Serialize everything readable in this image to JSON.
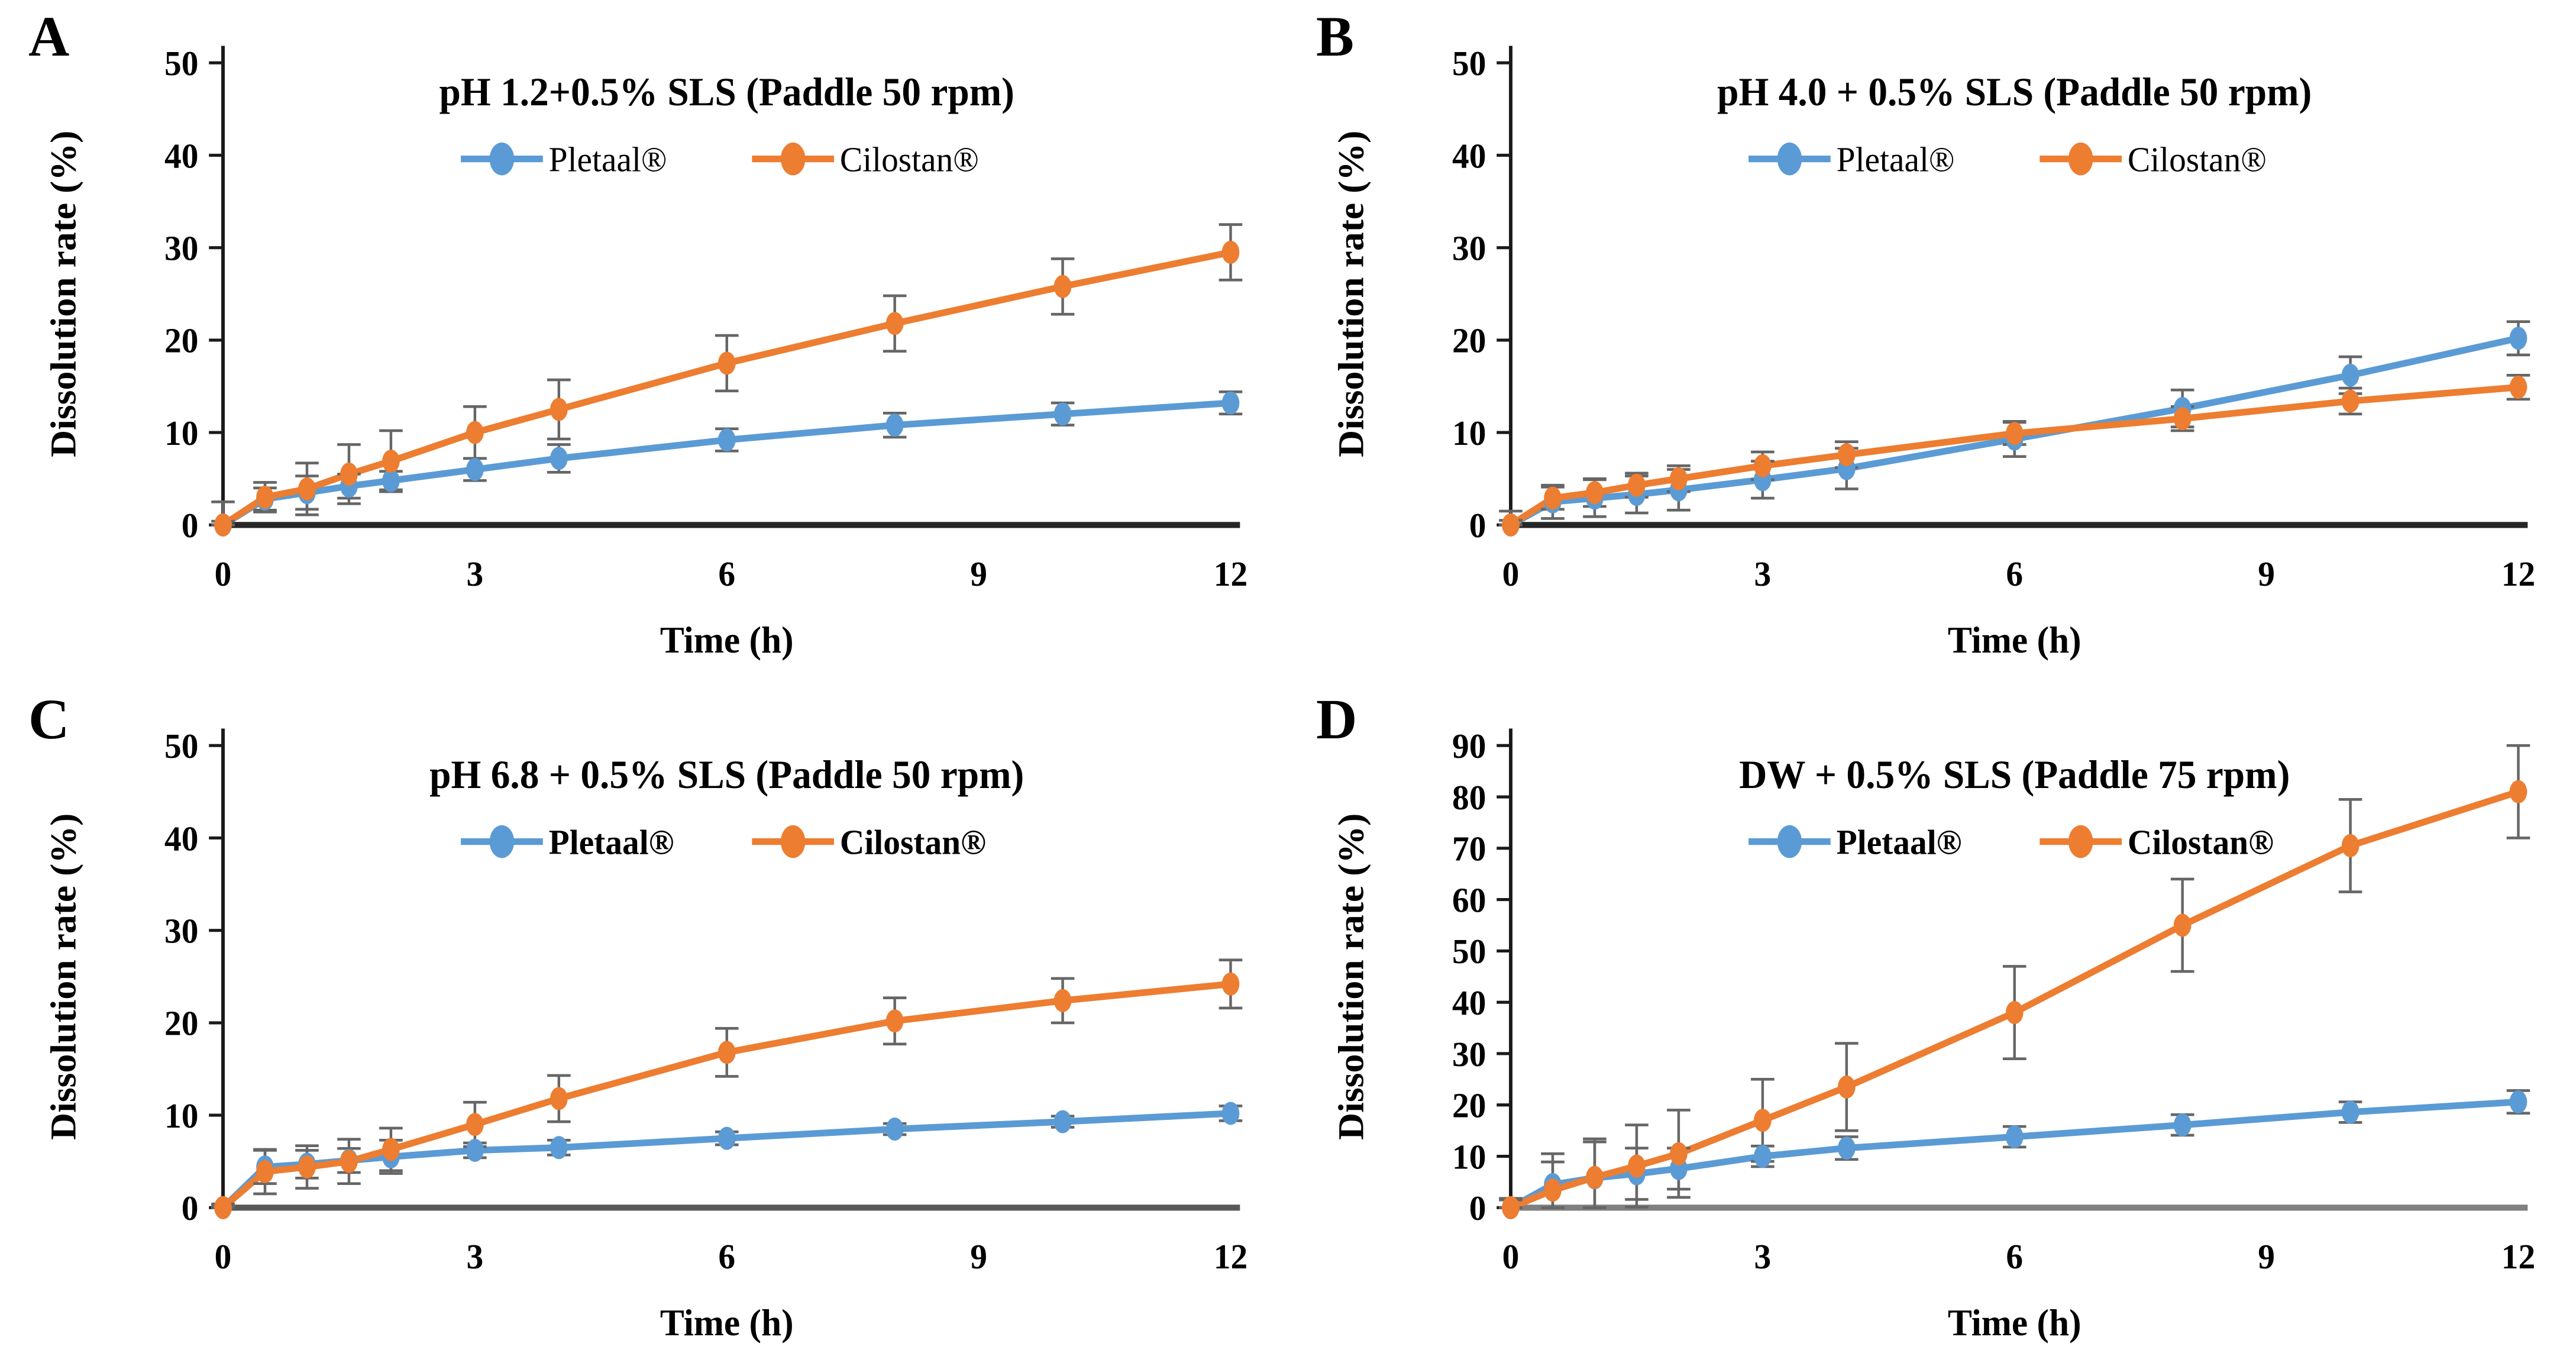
{
  "figure": {
    "description": "Dissolution profiles of cilostazol tablets under four media conditions",
    "series_legend": [
      "Pletaal®",
      "Cilostan®"
    ]
  },
  "colors": {
    "pletaal_blue": "#5B9BD5",
    "cilostan_orange": "#ED7D31",
    "error_bar_gray": "#666666",
    "axis_black": "#1a1a1a",
    "text_black": "#000000",
    "background": "#FFFFFF"
  },
  "chart_data": [
    {
      "type": "line",
      "panel": "A",
      "title": "pH 1.2+0.5% SLS (Paddle 50 rpm)",
      "xlabel": "Time (h)",
      "ylabel": "Dissolution rate (%)",
      "xlim": [
        0,
        12
      ],
      "ylim": [
        0,
        50
      ],
      "xticks": [
        0,
        3,
        6,
        9,
        12
      ],
      "yticks": [
        0,
        10,
        20,
        30,
        40,
        50
      ],
      "grid": false,
      "legend_position": "top-center",
      "legend_bold": false,
      "baseline_color": "#262626",
      "x": [
        0,
        0.5,
        1,
        1.5,
        2,
        3,
        4,
        6,
        8,
        10,
        12
      ],
      "series": [
        {
          "name": "Pletaal®",
          "color": "#5B9BD5",
          "values": [
            0,
            2.8,
            3.5,
            4.2,
            4.8,
            6.0,
            7.2,
            9.2,
            10.8,
            12.0,
            13.2
          ],
          "errors": [
            0.4,
            1.2,
            1.8,
            1.3,
            1.0,
            1.2,
            1.5,
            1.2,
            1.3,
            1.2,
            1.2
          ]
        },
        {
          "name": "Cilostan®",
          "color": "#ED7D31",
          "values": [
            0,
            3.0,
            3.9,
            5.5,
            6.9,
            10.0,
            12.5,
            17.5,
            21.8,
            25.8,
            29.5
          ],
          "errors": [
            2.5,
            1.6,
            2.8,
            3.2,
            3.3,
            2.8,
            3.2,
            3.0,
            3.0,
            3.0,
            3.0
          ]
        }
      ]
    },
    {
      "type": "line",
      "panel": "B",
      "title": "pH 4.0 + 0.5% SLS (Paddle 50 rpm)",
      "xlabel": "Time (h)",
      "ylabel": "Dissolution rate (%)",
      "xlim": [
        0,
        12
      ],
      "ylim": [
        0,
        50
      ],
      "xticks": [
        0,
        3,
        6,
        9,
        12
      ],
      "yticks": [
        0,
        10,
        20,
        30,
        40,
        50
      ],
      "grid": false,
      "legend_position": "top-center",
      "legend_bold": false,
      "baseline_color": "#262626",
      "x": [
        0,
        0.5,
        1,
        1.5,
        2,
        3,
        4,
        6,
        8,
        10,
        12
      ],
      "series": [
        {
          "name": "Pletaal®",
          "color": "#5B9BD5",
          "values": [
            0,
            2.5,
            2.9,
            3.3,
            3.8,
            4.9,
            6.1,
            9.3,
            12.6,
            16.2,
            20.2
          ],
          "errors": [
            1.5,
            1.8,
            2.0,
            2.0,
            2.2,
            2.0,
            2.2,
            1.9,
            2.0,
            2.0,
            1.8
          ]
        },
        {
          "name": "Cilostan®",
          "color": "#ED7D31",
          "values": [
            0,
            2.9,
            3.5,
            4.3,
            5.0,
            6.4,
            7.6,
            9.9,
            11.5,
            13.4,
            14.9
          ],
          "errors": [
            0.5,
            1.2,
            1.5,
            1.3,
            1.4,
            1.5,
            1.4,
            1.2,
            1.3,
            1.4,
            1.3
          ]
        }
      ]
    },
    {
      "type": "line",
      "panel": "C",
      "title": "pH 6.8 + 0.5% SLS (Paddle 50 rpm)",
      "xlabel": "Time (h)",
      "ylabel": "Dissolution rate (%)",
      "xlim": [
        0,
        12
      ],
      "ylim": [
        0,
        50
      ],
      "xticks": [
        0,
        3,
        6,
        9,
        12
      ],
      "yticks": [
        0,
        10,
        20,
        30,
        40,
        50
      ],
      "grid": false,
      "legend_position": "top-center",
      "legend_bold": true,
      "baseline_color": "#595959",
      "x": [
        0,
        0.5,
        1,
        1.5,
        2,
        3,
        4,
        6,
        8,
        10,
        12
      ],
      "series": [
        {
          "name": "Pletaal®",
          "color": "#5B9BD5",
          "values": [
            0,
            4.4,
            4.7,
            5.1,
            5.5,
            6.2,
            6.5,
            7.5,
            8.5,
            9.3,
            10.2
          ],
          "errors": [
            0.3,
            1.8,
            1.5,
            1.3,
            1.8,
            0.8,
            0.8,
            0.7,
            0.6,
            0.6,
            0.8
          ]
        },
        {
          "name": "Cilostan®",
          "color": "#ED7D31",
          "values": [
            0,
            3.9,
            4.4,
            5.0,
            6.3,
            9.0,
            11.8,
            16.8,
            20.2,
            22.4,
            24.2
          ],
          "errors": [
            0.4,
            2.4,
            2.3,
            2.4,
            2.3,
            2.4,
            2.5,
            2.6,
            2.5,
            2.4,
            2.6
          ]
        }
      ]
    },
    {
      "type": "line",
      "panel": "D",
      "title": "DW + 0.5% SLS  (Paddle 75 rpm)",
      "xlabel": "Time (h)",
      "ylabel": "Dissolution rate (%)",
      "xlim": [
        0,
        12
      ],
      "ylim": [
        0,
        90
      ],
      "xticks": [
        0,
        3,
        6,
        9,
        12
      ],
      "yticks": [
        0,
        10,
        20,
        30,
        40,
        50,
        60,
        70,
        80,
        90
      ],
      "grid": false,
      "legend_position": "top-center",
      "legend_bold": true,
      "baseline_color": "#808080",
      "x": [
        0,
        0.5,
        1,
        1.5,
        2,
        3,
        4,
        6,
        8,
        10,
        12
      ],
      "series": [
        {
          "name": "Pletaal®",
          "color": "#5B9BD5",
          "values": [
            0,
            4.5,
            5.8,
            6.6,
            7.6,
            10.0,
            11.6,
            13.8,
            16.1,
            18.6,
            20.6
          ],
          "errors": [
            1.8,
            6.0,
            7.0,
            5.0,
            4.0,
            2.0,
            2.2,
            2.0,
            2.0,
            2.0,
            2.2
          ]
        },
        {
          "name": "Cilostan®",
          "color": "#ED7D31",
          "values": [
            0,
            3.4,
            5.9,
            8.1,
            10.5,
            17.0,
            23.5,
            38.0,
            55.0,
            70.5,
            81.0
          ],
          "errors": [
            1.5,
            5.5,
            7.5,
            8.0,
            8.5,
            8.0,
            8.5,
            9.0,
            9.0,
            9.0,
            9.0
          ]
        }
      ]
    }
  ]
}
